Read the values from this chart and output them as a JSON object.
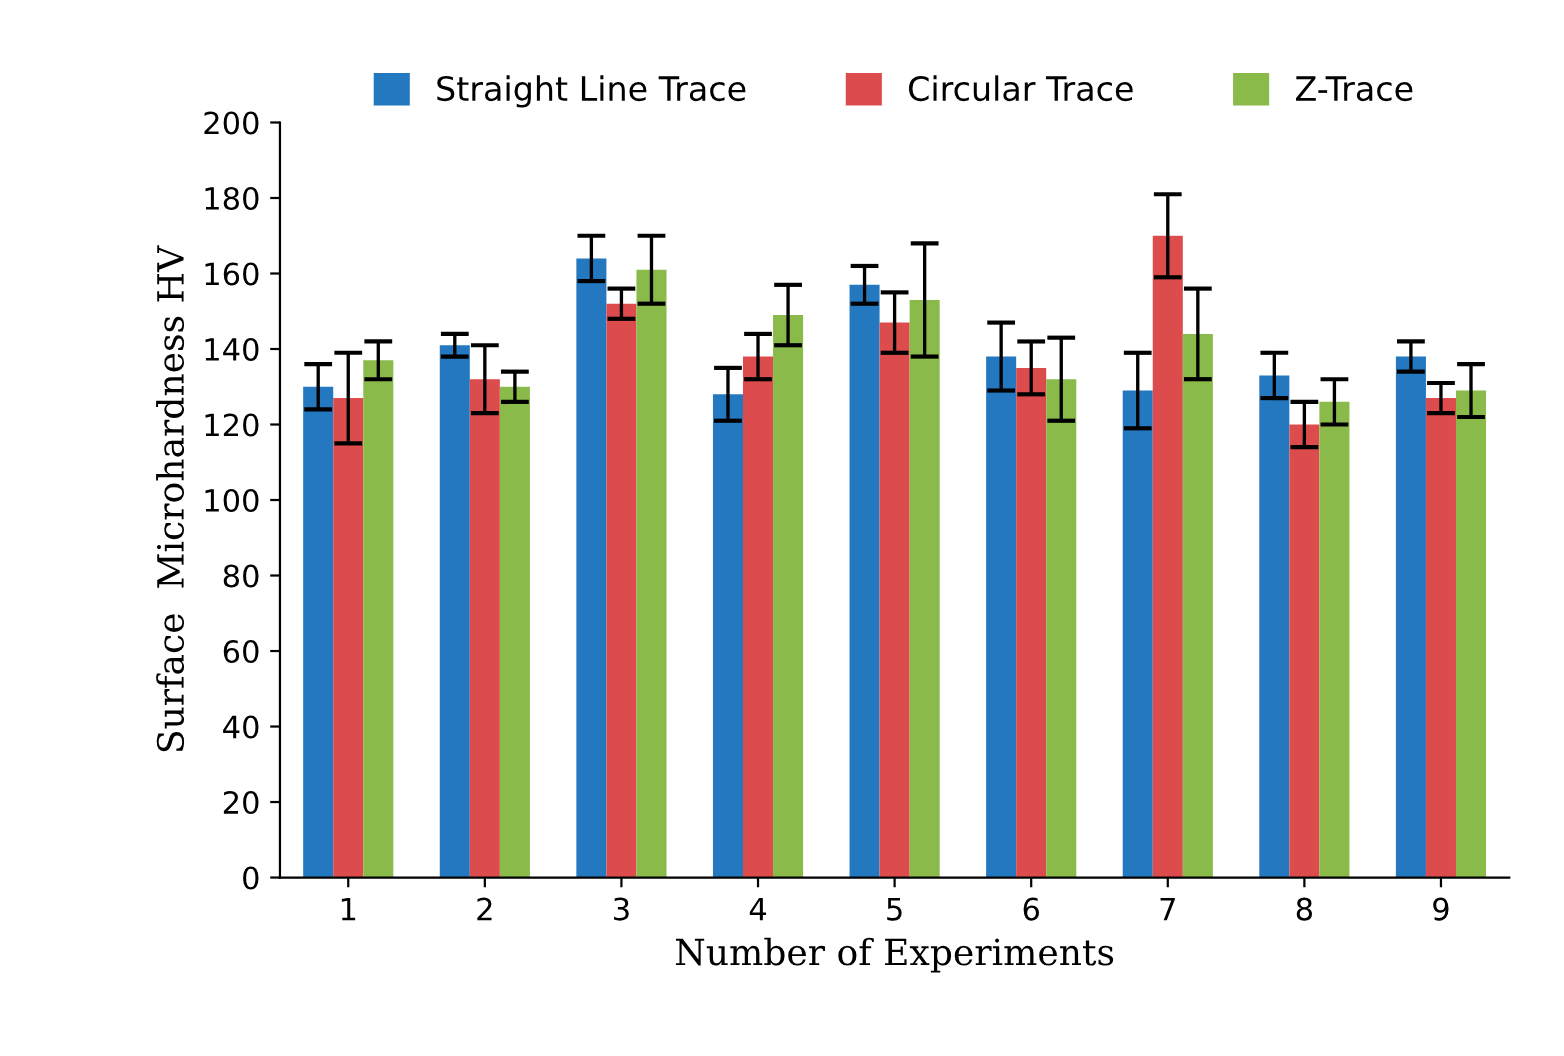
{
  "chart_data": {
    "type": "bar",
    "xlabel": "Number of Experiments",
    "ylabel": "Surface  Microhardness HV",
    "categories": [
      "1",
      "2",
      "3",
      "4",
      "5",
      "6",
      "7",
      "8",
      "9"
    ],
    "series": [
      {
        "name": "Straight Line Trace",
        "color": "#2378c0",
        "values": [
          130,
          141,
          164,
          128,
          157,
          138,
          129,
          133,
          138
        ],
        "errors": [
          6,
          3,
          6,
          7,
          5,
          9,
          10,
          6,
          4
        ]
      },
      {
        "name": "Circular Trace",
        "color": "#dc4c4c",
        "values": [
          127,
          132,
          152,
          138,
          147,
          135,
          170,
          120,
          127
        ],
        "errors": [
          12,
          9,
          4,
          6,
          8,
          7,
          11,
          6,
          4
        ]
      },
      {
        "name": "Z-Trace",
        "color": "#8aba4a",
        "values": [
          137,
          130,
          161,
          149,
          153,
          132,
          144,
          126,
          129
        ],
        "errors": [
          5,
          4,
          9,
          8,
          15,
          11,
          12,
          6,
          7
        ]
      }
    ],
    "ylim": [
      0,
      200
    ],
    "yticks": [
      0,
      20,
      40,
      60,
      80,
      100,
      120,
      140,
      160,
      180,
      200
    ],
    "grid": false,
    "legend": "top"
  }
}
